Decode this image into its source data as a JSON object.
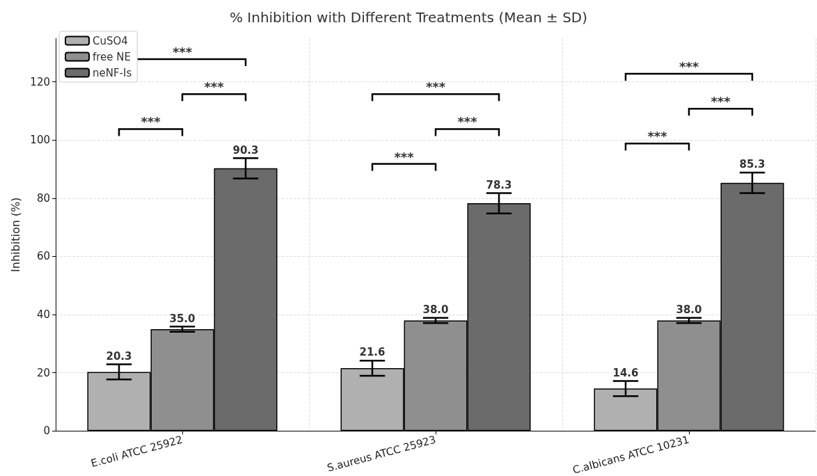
{
  "chart_data": {
    "type": "bar",
    "title": "% Inhibition with Different Treatments (Mean ± SD)",
    "ylabel": "Inhibition (%)",
    "categories": [
      "E.coli ATCC 25922",
      "S.aureus ATCC 25923",
      "C.albicans ATCC 10231"
    ],
    "series": [
      {
        "name": "CuSO4",
        "color": "#b0b0b0",
        "values": [
          20.3,
          21.6,
          14.6
        ],
        "value_labels": [
          "20.3",
          "21.6",
          "14.6"
        ],
        "errors": [
          2.6,
          2.6,
          2.6
        ]
      },
      {
        "name": "free NE",
        "color": "#8f8f8f",
        "values": [
          35.0,
          38.0,
          38.0
        ],
        "value_labels": [
          "35.0",
          "38.0",
          "38.0"
        ],
        "errors": [
          0.9,
          0.9,
          0.9
        ]
      },
      {
        "name": "neNF-Is",
        "color": "#6b6b6b",
        "values": [
          90.3,
          78.3,
          85.3
        ],
        "value_labels": [
          "90.3",
          "78.3",
          "85.3"
        ],
        "errors": [
          3.5,
          3.5,
          3.5
        ]
      }
    ],
    "ylim": [
      0,
      135
    ],
    "yticks": [
      0,
      20,
      40,
      60,
      80,
      100,
      120
    ],
    "grid": true,
    "legend": "top left",
    "annotations": [
      "***",
      "***",
      "***",
      "***",
      "***",
      "***",
      "***",
      "***",
      "***"
    ]
  }
}
